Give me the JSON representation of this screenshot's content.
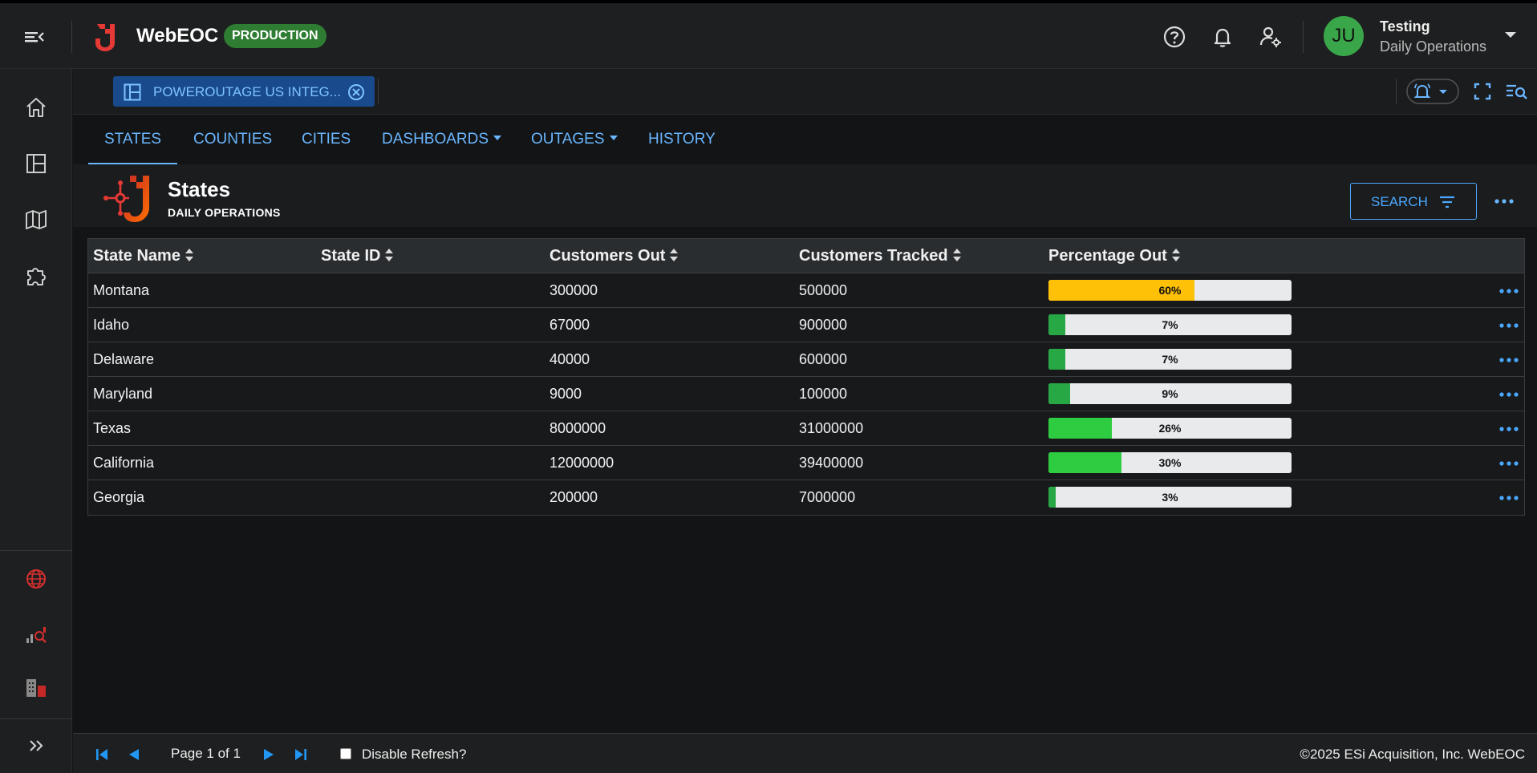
{
  "header": {
    "brand": "WebEOC",
    "environment_badge": "PRODUCTION",
    "user": {
      "initials": "JU",
      "name": "Testing",
      "position": "Daily Operations"
    },
    "icons": [
      "menu-collapse-icon",
      "help-icon",
      "bell-icon",
      "user-settings-icon",
      "chevron-down-icon"
    ]
  },
  "sidebar": {
    "items": [
      "home-icon",
      "boards-icon",
      "map-icon",
      "plugins-icon",
      "globe-icon",
      "analytics-icon",
      "buildings-icon",
      "expand-icon"
    ]
  },
  "board_tab": {
    "label": "POWEROUTAGE US INTEG..."
  },
  "nav": {
    "tabs": [
      {
        "label": "STATES",
        "active": true
      },
      {
        "label": "COUNTIES"
      },
      {
        "label": "CITIES"
      },
      {
        "label": "DASHBOARDS",
        "dropdown": true
      },
      {
        "label": "OUTAGES",
        "dropdown": true
      },
      {
        "label": "HISTORY"
      }
    ]
  },
  "board": {
    "title": "States",
    "subtitle": "DAILY OPERATIONS",
    "search_label": "SEARCH"
  },
  "table": {
    "columns": [
      "State Name",
      "State ID",
      "Customers Out",
      "Customers Tracked",
      "Percentage Out"
    ],
    "rows": [
      {
        "state": "Montana",
        "id": "",
        "out": "300000",
        "tracked": "500000",
        "pct_label": "60%",
        "pct": 60,
        "color": "#ffc107"
      },
      {
        "state": "Idaho",
        "id": "",
        "out": "67000",
        "tracked": "900000",
        "pct_label": "7%",
        "pct": 7,
        "color": "#28a745"
      },
      {
        "state": "Delaware",
        "id": "",
        "out": "40000",
        "tracked": "600000",
        "pct_label": "7%",
        "pct": 7,
        "color": "#28a745"
      },
      {
        "state": "Maryland",
        "id": "",
        "out": "9000",
        "tracked": "100000",
        "pct_label": "9%",
        "pct": 9,
        "color": "#28a745"
      },
      {
        "state": "Texas",
        "id": "",
        "out": "8000000",
        "tracked": "31000000",
        "pct_label": "26%",
        "pct": 26,
        "color": "#2ecc40"
      },
      {
        "state": "California",
        "id": "",
        "out": "12000000",
        "tracked": "39400000",
        "pct_label": "30%",
        "pct": 30,
        "color": "#2ecc40"
      },
      {
        "state": "Georgia",
        "id": "",
        "out": "200000",
        "tracked": "7000000",
        "pct_label": "3%",
        "pct": 3,
        "color": "#28a745"
      }
    ]
  },
  "footer": {
    "page_text": "Page 1 of 1",
    "refresh_label": "Disable Refresh?",
    "copyright": "©2025 ESi Acquisition, Inc. WebEOC"
  },
  "colors": {
    "accent": "#6ab6ff",
    "production_badge": "#2e7d32",
    "avatar": "#3aa64a",
    "brand_red": "#d32f2f"
  }
}
